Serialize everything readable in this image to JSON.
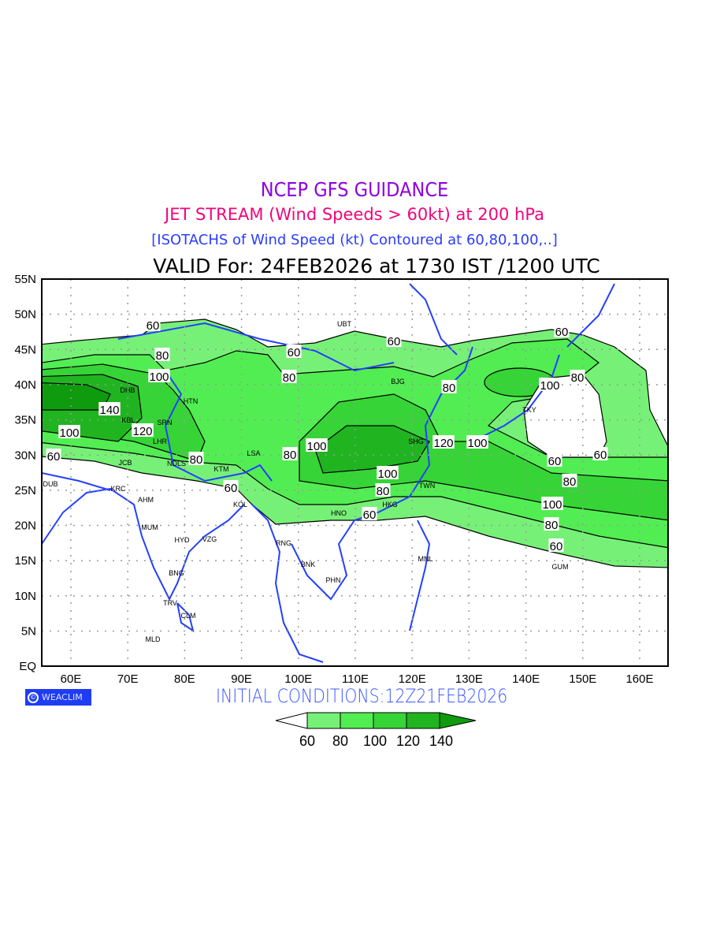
{
  "titles": {
    "line1": "NCEP GFS GUIDANCE",
    "line2": "JET STREAM (Wind Speeds > 60kt) at 200 hPa",
    "line3": "[ISOTACHS of Wind Speed (kt) Contoured at 60,80,100,..]",
    "line4": "VALID For: 24FEB2026 at 1730 IST /1200 UTC"
  },
  "colors": {
    "band60": "#77f077",
    "band80": "#52ed52",
    "band100": "#37d437",
    "band120": "#21b421",
    "band140": "#0e9b0e",
    "coast": "#2440ff",
    "logo_bg": "#1f3cf5",
    "title1": "#8f00e0",
    "title2": "#f0057a",
    "title3": "#2a3cff"
  },
  "axes": {
    "lon_ticks": [
      "60E",
      "70E",
      "80E",
      "90E",
      "100E",
      "110E",
      "120E",
      "130E",
      "140E",
      "150E",
      "160E"
    ],
    "lat_ticks": [
      "55N",
      "50N",
      "45N",
      "40N",
      "35N",
      "30N",
      "25N",
      "20N",
      "15N",
      "10N",
      "5N",
      "EQ"
    ]
  },
  "cities": [
    "UBT",
    "BJG",
    "SHG",
    "TKY",
    "DHB",
    "KBL",
    "SRN",
    "HTN",
    "LHR",
    "NDLS",
    "JCB",
    "KTM",
    "LSA",
    "DUB",
    "KRC",
    "AHM",
    "KOL",
    "MUM",
    "HYD",
    "VZG",
    "BNG",
    "RNG",
    "BNK",
    "PHN",
    "HNO",
    "HKG",
    "TWN",
    "MNL",
    "GUM",
    "CLM",
    "TRV",
    "MLD"
  ],
  "contour_labels": [
    "60",
    "80",
    "100",
    "140",
    "120",
    "100",
    "60",
    "80",
    "60",
    "60",
    "80",
    "100",
    "80",
    "60",
    "80",
    "120",
    "100",
    "100",
    "80",
    "60",
    "60",
    "80",
    "100",
    "60",
    "60",
    "80",
    "100",
    "80",
    "60"
  ],
  "logo": {
    "symbol": "©",
    "text": "WEACLIM"
  },
  "initial_conditions": "INITIAL CONDITIONS:12Z21FEB2026",
  "colorbar": {
    "labels": [
      "60",
      "80",
      "100",
      "120",
      "140"
    ]
  }
}
